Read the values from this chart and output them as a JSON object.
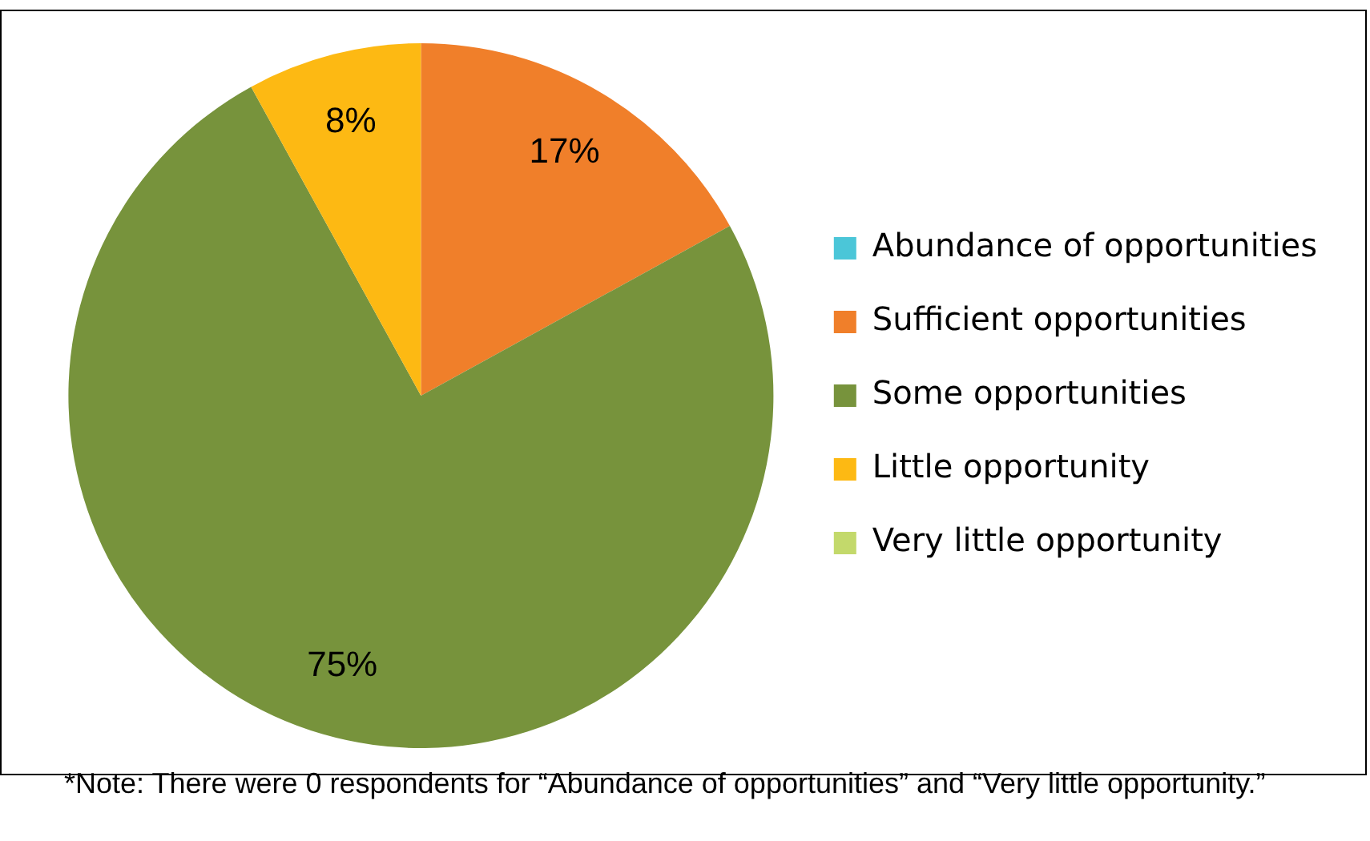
{
  "chart_data": {
    "type": "pie",
    "categories": [
      "Abundance of opportunities",
      "Sufficient opportunities",
      "Some opportunities",
      "Little opportunity",
      "Very little opportunity"
    ],
    "values": [
      0,
      17,
      75,
      8,
      0
    ],
    "colors": [
      "#4bc6d8",
      "#f07f2a",
      "#77933c",
      "#fdb913",
      "#c3d96b"
    ],
    "value_labels": [
      null,
      "17%",
      "75%",
      "8%",
      null
    ],
    "legend": "right",
    "annotations": [
      "*Note: There were 0 respondents for “Abundance of opportunities” and “Very little opportunity.”"
    ]
  }
}
